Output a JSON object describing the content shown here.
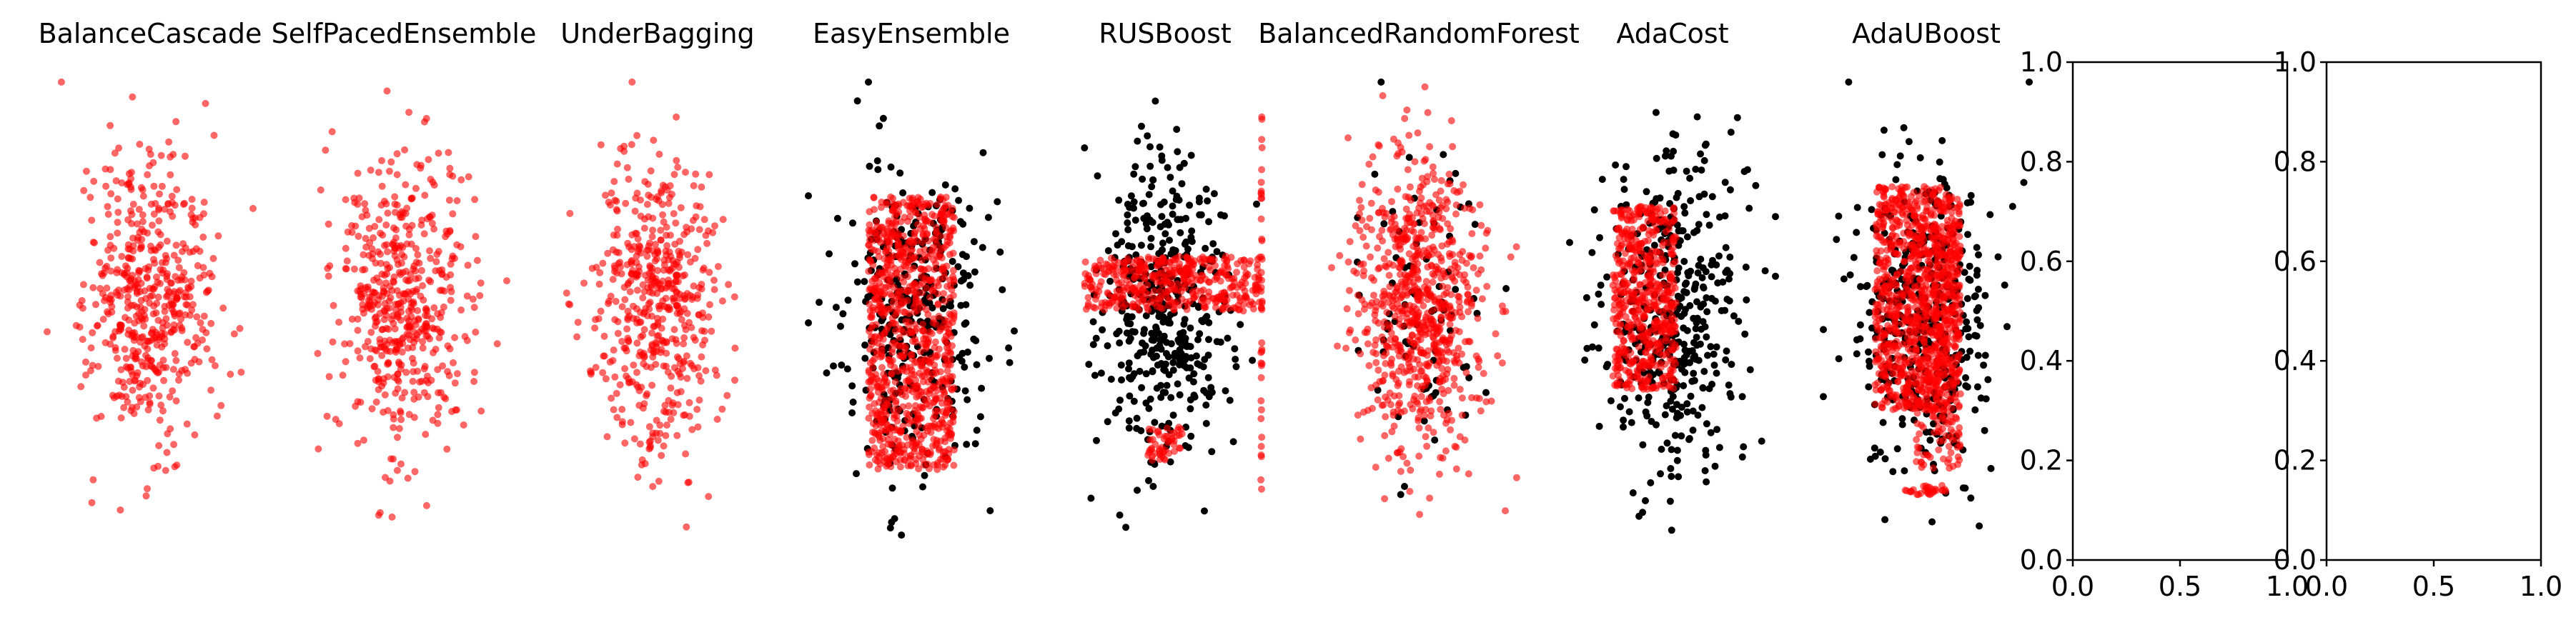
{
  "figure": {
    "colors": {
      "red": "#ff0000",
      "black": "#000000",
      "axes": "#000000"
    }
  },
  "chart_data": [
    {
      "type": "scatter",
      "title": "BalanceCascade",
      "axis_visible": false,
      "ylim": [
        0.0,
        1.0
      ],
      "series": [
        {
          "color": "#ff0000",
          "alpha": 0.6,
          "distribution": "gaussian",
          "count": 520,
          "x_center": 0.5,
          "x_spread": 0.14,
          "y_center": 0.52,
          "y_spread": 0.15,
          "extent": [
            0.05,
            0.96
          ]
        }
      ]
    },
    {
      "type": "scatter",
      "title": "SelfPacedEnsemble",
      "axis_visible": false,
      "ylim": [
        0.0,
        1.0
      ],
      "series": [
        {
          "color": "#ff0000",
          "alpha": 0.6,
          "distribution": "gaussian",
          "count": 520,
          "x_center": 0.5,
          "x_spread": 0.15,
          "y_center": 0.52,
          "y_spread": 0.15,
          "extent": [
            0.05,
            0.96
          ]
        }
      ]
    },
    {
      "type": "scatter",
      "title": "UnderBagging",
      "axis_visible": false,
      "ylim": [
        0.0,
        1.0
      ],
      "series": [
        {
          "color": "#ff0000",
          "alpha": 0.6,
          "distribution": "gaussian",
          "count": 520,
          "x_center": 0.5,
          "x_spread": 0.15,
          "y_center": 0.52,
          "y_spread": 0.15,
          "extent": [
            0.05,
            0.96
          ]
        }
      ]
    },
    {
      "type": "scatter",
      "title": "EasyEnsemble",
      "axis_visible": false,
      "ylim": [
        0.0,
        1.0
      ],
      "series": [
        {
          "color": "#000000",
          "alpha": 1.0,
          "distribution": "gaussian",
          "count": 330,
          "x_center": 0.5,
          "x_spread": 0.17,
          "y_center": 0.5,
          "y_spread": 0.16,
          "extent": [
            0.05,
            0.96
          ]
        },
        {
          "color": "#ff0000",
          "alpha": 0.6,
          "distribution": "block",
          "count": 900,
          "x_range": [
            0.3,
            0.7
          ],
          "y_range": [
            0.18,
            0.73
          ]
        }
      ]
    },
    {
      "type": "scatter",
      "title": "RUSBoost",
      "axis_visible": false,
      "ylim": [
        0.0,
        1.0
      ],
      "series": [
        {
          "color": "#000000",
          "alpha": 1.0,
          "distribution": "gaussian",
          "count": 420,
          "x_center": 0.5,
          "x_spread": 0.14,
          "y_center": 0.5,
          "y_spread": 0.16,
          "extent": [
            0.05,
            0.96
          ]
        },
        {
          "color": "#ff0000",
          "alpha": 0.6,
          "distribution": "block",
          "count": 420,
          "x_range": [
            0.12,
            0.95
          ],
          "y_range": [
            0.5,
            0.61
          ]
        },
        {
          "color": "#ff0000",
          "alpha": 0.6,
          "distribution": "block",
          "count": 50,
          "x_range": [
            0.42,
            0.58
          ],
          "y_range": [
            0.2,
            0.27
          ]
        },
        {
          "color": "#ff0000",
          "alpha": 0.6,
          "distribution": "line",
          "count": 40,
          "x_value": 0.95,
          "y_range": [
            0.14,
            0.92
          ]
        }
      ]
    },
    {
      "type": "scatter",
      "title": "BalancedRandomForest",
      "axis_visible": false,
      "ylim": [
        0.0,
        1.0
      ],
      "series": [
        {
          "color": "#000000",
          "alpha": 1.0,
          "distribution": "gaussian",
          "count": 80,
          "x_center": 0.5,
          "x_spread": 0.17,
          "y_center": 0.5,
          "y_spread": 0.16,
          "extent": [
            0.05,
            0.96
          ]
        },
        {
          "color": "#ff0000",
          "alpha": 0.6,
          "distribution": "gaussian",
          "count": 750,
          "x_center": 0.5,
          "x_spread": 0.15,
          "y_center": 0.52,
          "y_spread": 0.15,
          "extent": [
            0.05,
            0.96
          ]
        }
      ]
    },
    {
      "type": "scatter",
      "title": "AdaCost",
      "axis_visible": false,
      "ylim": [
        0.0,
        1.0
      ],
      "series": [
        {
          "color": "#000000",
          "alpha": 1.0,
          "distribution": "gaussian",
          "count": 420,
          "x_center": 0.5,
          "x_spread": 0.17,
          "y_center": 0.5,
          "y_spread": 0.16,
          "extent": [
            0.05,
            0.96
          ]
        },
        {
          "color": "#ff0000",
          "alpha": 0.6,
          "distribution": "block",
          "count": 550,
          "x_range": [
            0.22,
            0.52
          ],
          "y_range": [
            0.34,
            0.71
          ]
        }
      ]
    },
    {
      "type": "scatter",
      "title": "AdaUBoost",
      "axis_visible": false,
      "ylim": [
        0.0,
        1.0
      ],
      "series": [
        {
          "color": "#000000",
          "alpha": 1.0,
          "distribution": "gaussian",
          "count": 420,
          "x_center": 0.5,
          "x_spread": 0.16,
          "y_center": 0.5,
          "y_spread": 0.16,
          "extent": [
            0.05,
            0.96
          ]
        },
        {
          "color": "#ff0000",
          "alpha": 0.6,
          "distribution": "block",
          "count": 900,
          "x_range": [
            0.26,
            0.66
          ],
          "y_range": [
            0.3,
            0.75
          ]
        },
        {
          "color": "#ff0000",
          "alpha": 0.6,
          "distribution": "block",
          "count": 250,
          "x_range": [
            0.45,
            0.66
          ],
          "y_range": [
            0.18,
            0.68
          ]
        },
        {
          "color": "#ff0000",
          "alpha": 0.6,
          "distribution": "block",
          "count": 30,
          "x_range": [
            0.38,
            0.6
          ],
          "y_range": [
            0.13,
            0.15
          ]
        }
      ]
    },
    {
      "type": "scatter",
      "title": "",
      "axis_visible": true,
      "xlim": [
        0.0,
        1.0
      ],
      "ylim": [
        0.0,
        1.0
      ],
      "xticks": [
        "0.0",
        "0.5",
        "1.0"
      ],
      "yticks": [
        "0.0",
        "0.2",
        "0.4",
        "0.6",
        "0.8",
        "1.0"
      ],
      "series": []
    },
    {
      "type": "scatter",
      "title": "",
      "axis_visible": true,
      "xlim": [
        0.0,
        1.0
      ],
      "ylim": [
        0.0,
        1.0
      ],
      "xticks": [
        "0.0",
        "0.5",
        "1.0"
      ],
      "yticks": [
        "0.0",
        "0.2",
        "0.4",
        "0.6",
        "0.8",
        "1.0"
      ],
      "series": []
    }
  ]
}
